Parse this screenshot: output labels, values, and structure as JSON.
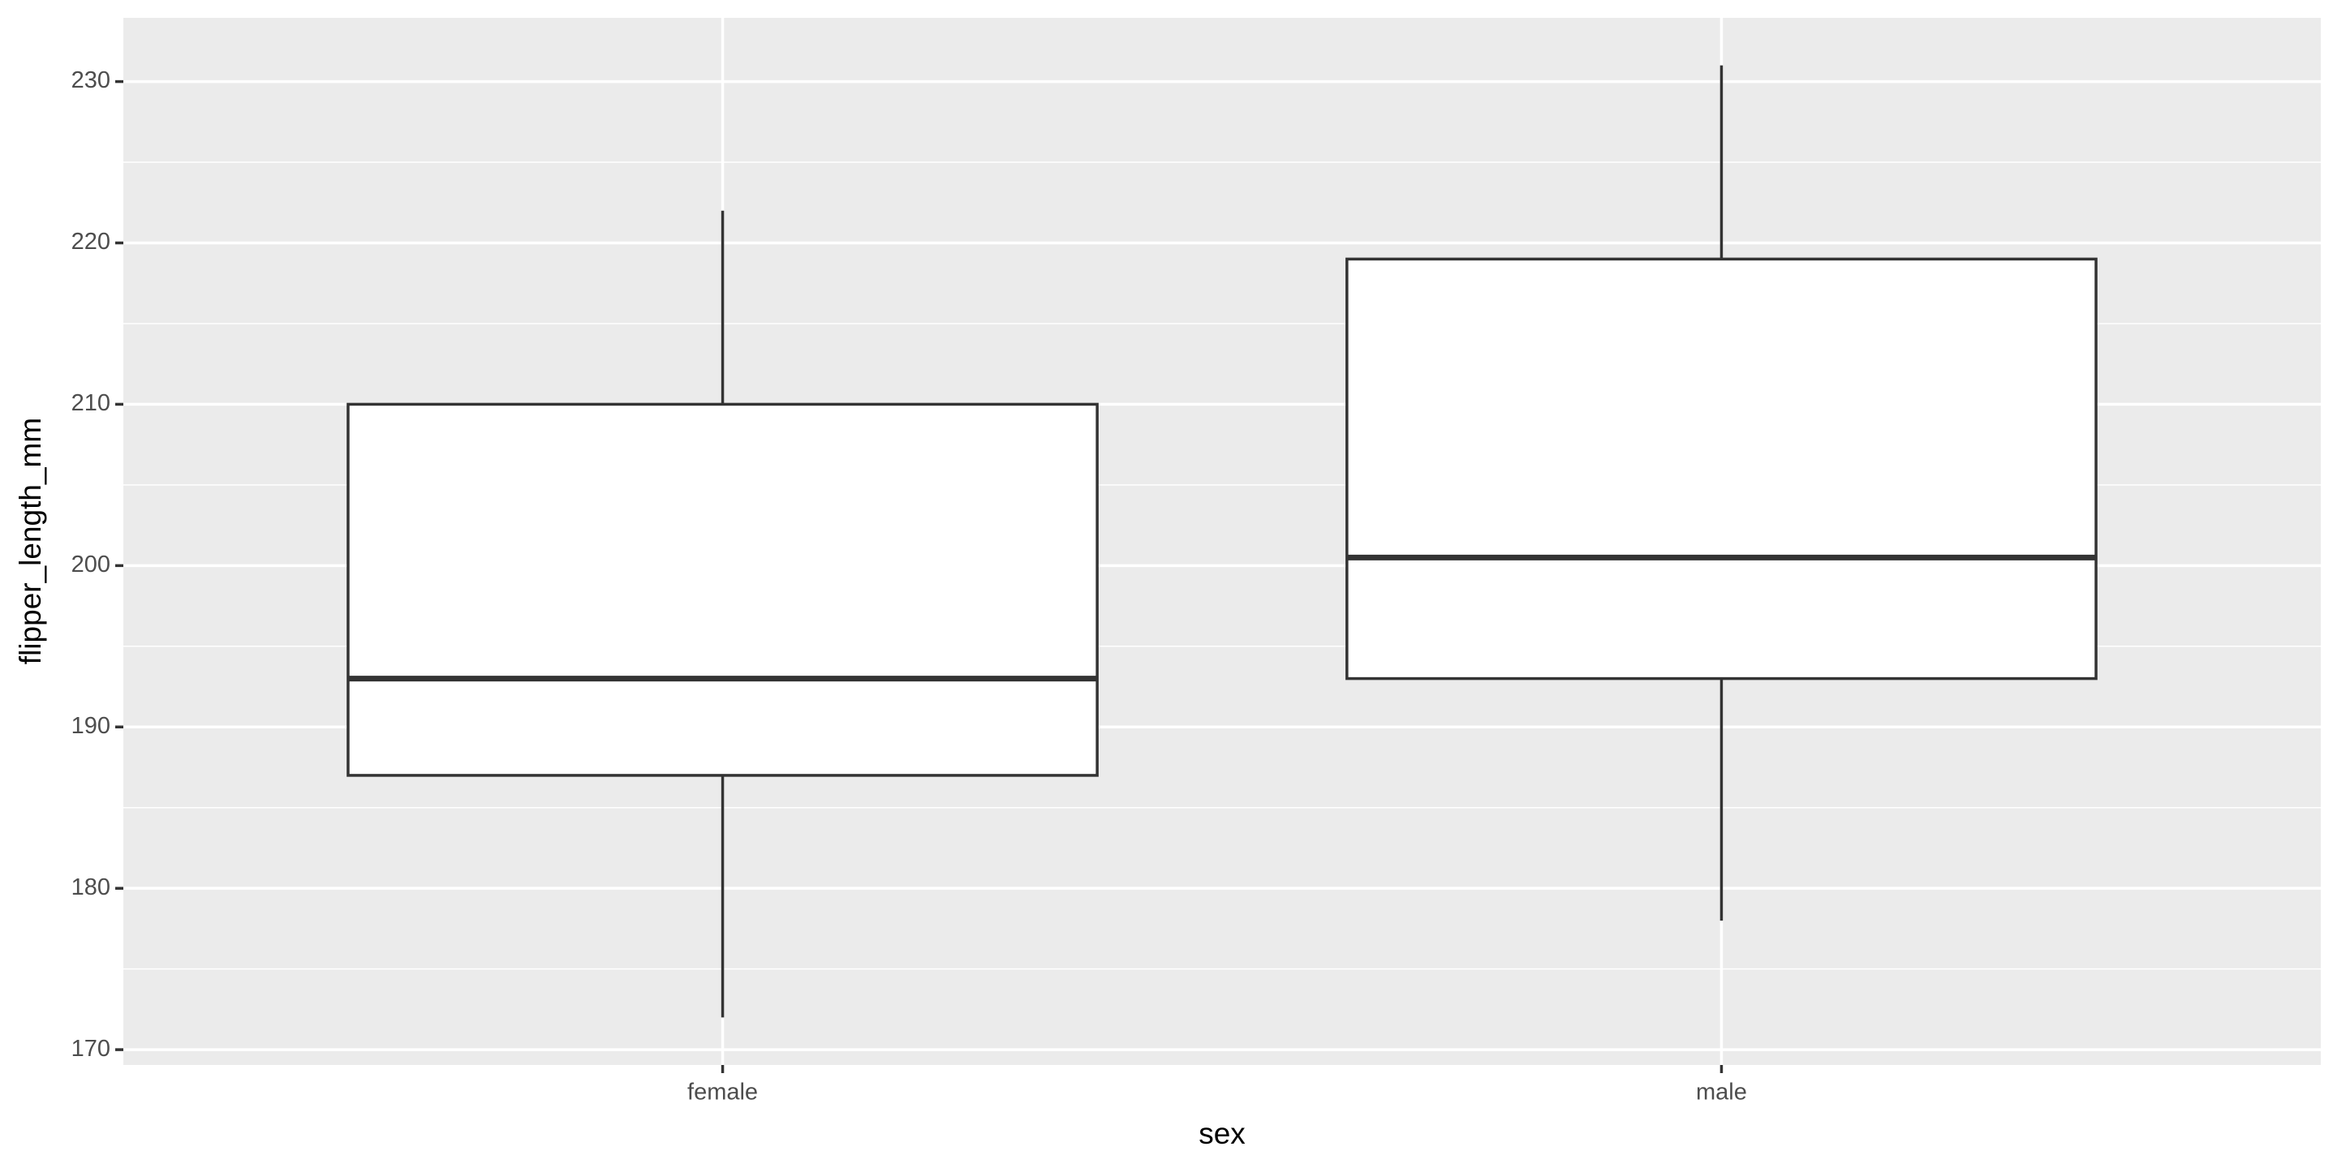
{
  "chart_data": {
    "type": "boxplot",
    "x_label": "sex",
    "y_label": "flipper_length_mm",
    "categories": [
      "female",
      "male"
    ],
    "boxes": [
      {
        "min": 172,
        "q1": 187,
        "median": 193,
        "q3": 210,
        "max": 222
      },
      {
        "min": 178,
        "q1": 193,
        "median": 200.5,
        "q3": 219,
        "max": 231
      }
    ],
    "ylim": [
      169.05,
      233.95
    ],
    "yticks": [
      170,
      180,
      190,
      200,
      210,
      220,
      230
    ],
    "minor_yticks": [
      175,
      185,
      195,
      205,
      215,
      225
    ],
    "grid": true,
    "panel_color": "#ebebeb",
    "box_fill": "#ffffff",
    "box_stroke": "#333333"
  }
}
